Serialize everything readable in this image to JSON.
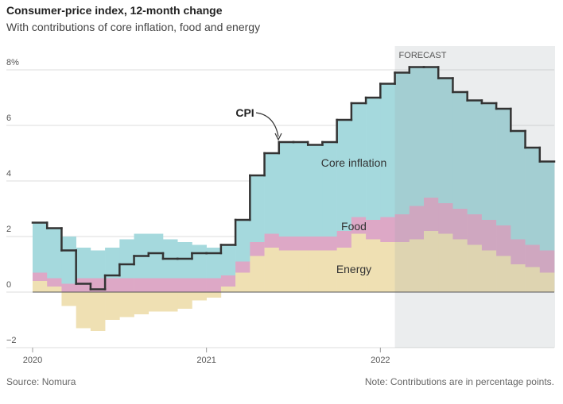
{
  "chart_data": {
    "type": "stacked-step-area",
    "title": "Consumer-price index, 12-month change",
    "subtitle": "With contributions of core inflation, food and energy",
    "source": "Source: Nomura",
    "note": "Note: Contributions are in percentage points.",
    "forecast_label": "FORECAST",
    "forecast_from_index": 25,
    "categories": [
      "2020",
      null,
      null,
      null,
      null,
      null,
      null,
      null,
      null,
      null,
      null,
      null,
      "2021",
      null,
      null,
      null,
      null,
      null,
      null,
      null,
      null,
      null,
      null,
      null,
      "2022",
      null,
      null,
      null,
      null,
      null,
      null,
      null,
      null,
      null,
      null,
      null
    ],
    "series": [
      {
        "name": "Energy",
        "color": "#efe0b3",
        "values": [
          0.4,
          0.2,
          -0.5,
          -1.3,
          -1.4,
          -1.0,
          -0.9,
          -0.8,
          -0.7,
          -0.7,
          -0.6,
          -0.3,
          -0.2,
          0.2,
          0.7,
          1.3,
          1.6,
          1.5,
          1.5,
          1.5,
          1.5,
          1.6,
          2.1,
          1.9,
          1.8,
          1.8,
          1.9,
          2.2,
          2.1,
          1.9,
          1.7,
          1.5,
          1.3,
          1.0,
          0.9,
          0.7
        ]
      },
      {
        "name": "Food",
        "color": "#dda8c6",
        "values": [
          0.3,
          0.3,
          0.3,
          0.5,
          0.5,
          0.5,
          0.5,
          0.5,
          0.5,
          0.5,
          0.5,
          0.5,
          0.5,
          0.4,
          0.4,
          0.5,
          0.5,
          0.5,
          0.5,
          0.5,
          0.5,
          0.6,
          0.6,
          0.7,
          0.9,
          1.0,
          1.2,
          1.2,
          1.1,
          1.1,
          1.1,
          1.1,
          1.1,
          0.9,
          0.8,
          0.8
        ]
      },
      {
        "name": "Core inflation",
        "color": "#a5d9dd",
        "values": [
          1.8,
          1.8,
          1.7,
          1.1,
          1.0,
          1.1,
          1.4,
          1.6,
          1.6,
          1.4,
          1.3,
          1.2,
          1.1,
          1.1,
          1.5,
          2.4,
          2.9,
          3.4,
          3.4,
          3.3,
          3.4,
          4.0,
          4.1,
          4.4,
          4.8,
          5.1,
          5.0,
          4.7,
          4.5,
          4.2,
          4.1,
          4.2,
          4.2,
          3.9,
          3.5,
          3.2
        ]
      }
    ],
    "line": {
      "name": "CPI",
      "color": "#333333",
      "values": [
        2.5,
        2.3,
        1.5,
        0.3,
        0.1,
        0.6,
        1.0,
        1.3,
        1.4,
        1.2,
        1.2,
        1.4,
        1.4,
        1.7,
        2.6,
        4.2,
        5.0,
        5.4,
        5.4,
        5.3,
        5.4,
        6.2,
        6.8,
        7.0,
        7.5,
        7.9,
        8.1,
        8.1,
        7.7,
        7.2,
        6.9,
        6.8,
        6.6,
        5.8,
        5.2,
        4.7
      ]
    },
    "ylim": [
      -2,
      8.5
    ],
    "yticks": [
      {
        "value": -2,
        "label": "−2"
      },
      0,
      2,
      4,
      6,
      {
        "value": 8,
        "label": "8%"
      }
    ],
    "grid": true
  }
}
